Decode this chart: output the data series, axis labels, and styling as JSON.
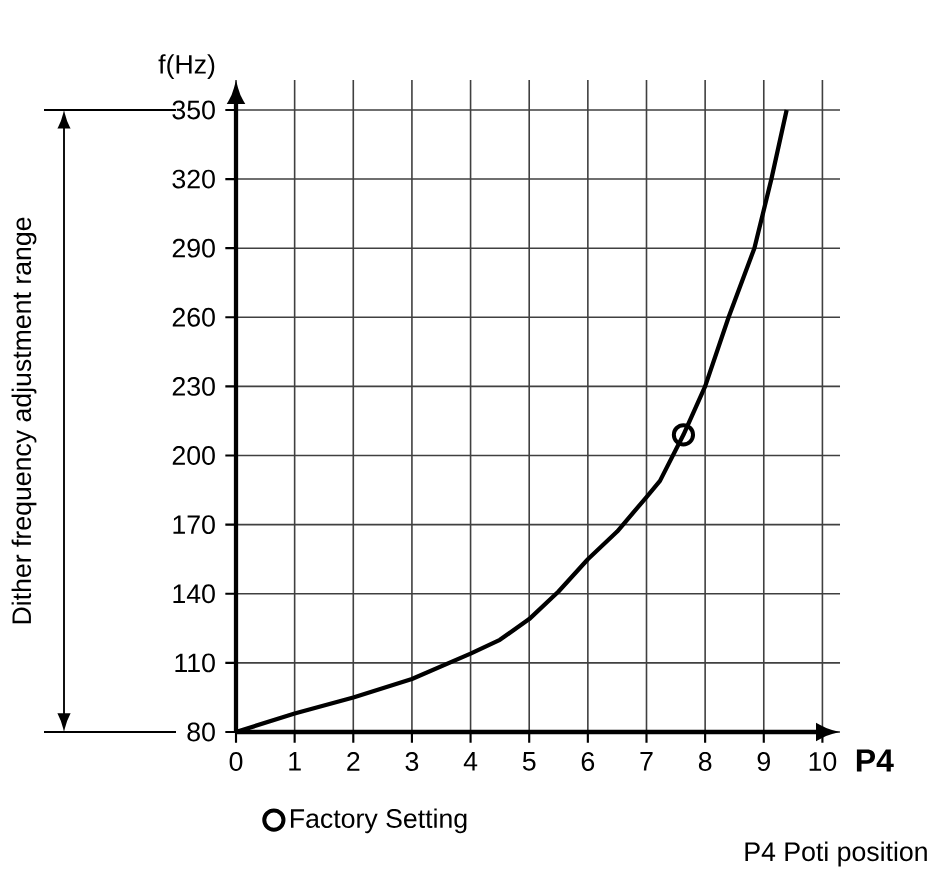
{
  "chart_data": {
    "type": "line",
    "xlabel": "P4",
    "ylabel": "f(Hz)",
    "xlim": [
      0,
      10.3
    ],
    "ylim": [
      80,
      363
    ],
    "xticks": [
      0,
      1,
      2,
      3,
      4,
      5,
      6,
      7,
      8,
      9,
      10
    ],
    "yticks": [
      80,
      110,
      140,
      170,
      200,
      230,
      260,
      290,
      320,
      350
    ],
    "grid": true,
    "legend": "bottom",
    "line_style": "solid",
    "series": [
      {
        "color": "#000000",
        "marker": "none",
        "x": [
          0,
          1,
          2,
          3,
          4,
          4.5,
          5,
          5.5,
          6,
          6.5,
          7,
          7.23,
          7.63,
          8,
          8.4,
          8.84,
          9.13,
          9.39
        ],
        "values": [
          80,
          88,
          95,
          103,
          114,
          120,
          129,
          141,
          155,
          167,
          182,
          189,
          209,
          230,
          260,
          290,
          320,
          350
        ]
      },
      {
        "type": "scatter",
        "name": "Factory Setting",
        "color": "#000000",
        "marker": "circle",
        "x": [
          7.63
        ],
        "values": [
          209
        ]
      }
    ],
    "annotations": [
      "Dither frequency adjustment range",
      "P4 Poti position"
    ]
  }
}
